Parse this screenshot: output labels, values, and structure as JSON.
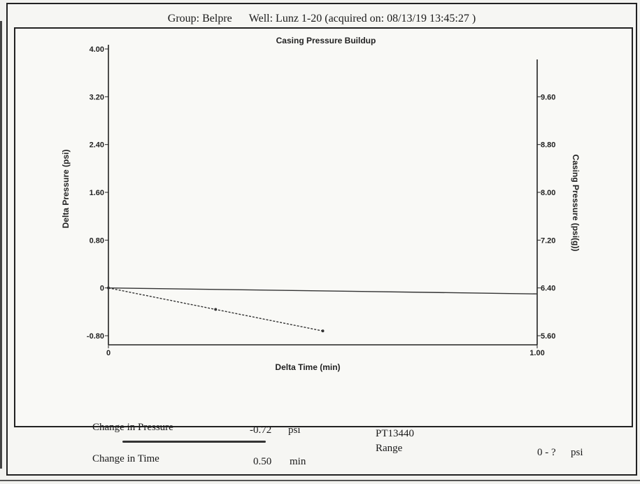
{
  "header": {
    "group": "Group: Belpre",
    "well": "Well: Lunz 1-20 (acquired on: 08/13/19 13:45:27 )"
  },
  "chart_data": {
    "type": "line",
    "title": "Casing Pressure Buildup",
    "xlabel": "Delta Time (min)",
    "ylabel": "Delta Pressure (psi)",
    "y2label": "Casing Pressure (psi(g))",
    "xlim": [
      0,
      1
    ],
    "ylim": [
      -0.8,
      4.0
    ],
    "y2lim": [
      5.6,
      10.4
    ],
    "x_ticks": [
      "0",
      "1.00"
    ],
    "y_ticks": [
      "-0.80",
      "0",
      "0.80",
      "1.60",
      "2.40",
      "3.20",
      "4.00"
    ],
    "y2_ticks": [
      "5.60",
      "6.40",
      "7.20",
      "8.00",
      "8.80",
      "9.60"
    ],
    "series": [
      {
        "values_x": [
          0,
          0.25,
          0.5
        ],
        "values_y": [
          0,
          -0.36,
          -0.72
        ],
        "axis": "left",
        "markers": true
      },
      {
        "values_x": [
          0,
          1.0
        ],
        "values_y": [
          6.4,
          6.3
        ],
        "axis": "right",
        "markers": false
      }
    ],
    "grid": false
  },
  "footer": {
    "pressure_label": "Change in Pressure",
    "pressure_value": "-0.72",
    "pressure_unit": "psi",
    "time_label": "Change in Time",
    "time_value": "0.50",
    "time_unit": "min",
    "sensor": "PT13440",
    "range_label": "Range",
    "range_value": "0 - ?",
    "range_unit": "psi"
  }
}
